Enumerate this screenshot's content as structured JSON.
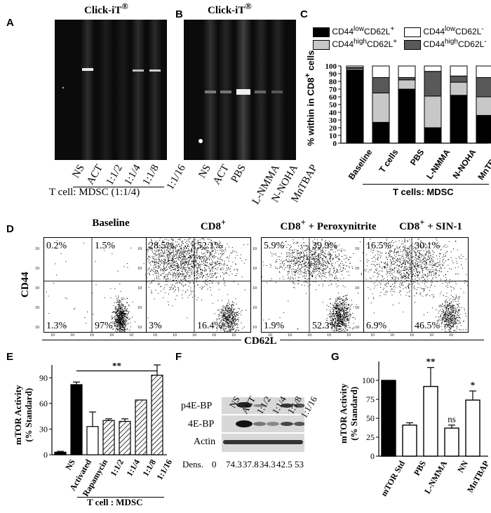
{
  "panel_letters": [
    "A",
    "B",
    "C",
    "D",
    "E",
    "F",
    "G"
  ],
  "panelA": {
    "title": "Click-iT",
    "title_sup": "®",
    "lanes": [
      "NS",
      "ACT",
      "1:1/2",
      "1:1/4",
      "1:1/8",
      "1:1/16"
    ],
    "group_label": "T cell: MDSC (1:1/4)"
  },
  "panelB": {
    "title": "Click-iT",
    "title_sup": "®",
    "lanes": [
      "NS",
      "ACT",
      "PBS",
      "L-NMMA",
      "N-NOHA",
      "MnTBAP"
    ]
  },
  "panelC": {
    "legend": {
      "a_main": "CD44",
      "a_sup1": "low",
      "a_mid": "CD62L",
      "a_sup2": "+",
      "b_main": "CD44",
      "b_sup1": "low",
      "b_mid": "CD62L",
      "b_sup2": "-",
      "c_main": "CD44",
      "c_sup1": "high",
      "c_mid": "CD62L",
      "c_sup2": "+",
      "d_main": "CD44",
      "d_sup1": "high",
      "d_mid": "CD62L",
      "d_sup2": "-"
    },
    "ylabel_pre": "% within in CD8",
    "ylabel_sup": "+",
    "ylabel_post": " cells",
    "yticks": [
      "0",
      "10",
      "20",
      "30",
      "40",
      "50",
      "60",
      "70",
      "80",
      "90",
      "100"
    ],
    "categories": [
      "Baseline",
      "T cells",
      "PBS",
      "L-NMMA",
      "N-NOHA",
      "MnTBAP"
    ],
    "group_label": "T cells: MDSC",
    "colors": {
      "lowPos": "#000000",
      "highPos": "#c8c8c8",
      "highNeg": "#595959",
      "lowNeg": "#ffffff"
    }
  },
  "panelD": {
    "plots": [
      {
        "title": "Baseline",
        "q": [
          "0.2%",
          "1.5%",
          "1.3%",
          "97%"
        ]
      },
      {
        "title": "CD8",
        "title_sup": "+",
        "q": [
          "28.5%",
          "52.1%",
          "3%",
          "16.4%"
        ]
      },
      {
        "title": "CD8",
        "title_sup": "+",
        "title_post": " + Peroxynitrite",
        "q": [
          "5.9%",
          "39.9%",
          "1.9%",
          "52.3%"
        ]
      },
      {
        "title": "CD8",
        "title_sup": "+",
        "title_post": " + SIN-1",
        "q": [
          "16.5%",
          "30.1%",
          "6.9%",
          "46.5%"
        ]
      }
    ],
    "ylabel": "CD44",
    "xlabel": "CD62L",
    "axis_ticks": [
      "10",
      "10",
      "10",
      "10",
      "10"
    ]
  },
  "panelE": {
    "ylabel_1": "mTOR Activity",
    "ylabel_2": "(% Standard)",
    "yticks": [
      "0",
      "30",
      "60",
      "90"
    ],
    "sig": "**",
    "group_label": "T cell : MDSC"
  },
  "panelF": {
    "lanes": [
      "NS",
      "ACT",
      "1:1/2",
      "1:1/4",
      "1:1/8",
      "1:1/16"
    ],
    "rows": [
      "p4E-BP",
      "4E-BP",
      "Actin"
    ],
    "dens_label": "Dens.",
    "dens_values": [
      "0",
      "74.3",
      "37.8",
      "34.3",
      "42.5",
      "53"
    ]
  },
  "panelG": {
    "ylabel_1": "mTOR Activity",
    "ylabel_2": "(% Standard)",
    "yticks": [
      "0",
      "25",
      "50",
      "75",
      "100"
    ],
    "annotations": [
      "**",
      "ns",
      "*"
    ]
  },
  "chart_data": [
    {
      "type": "bar",
      "stacked": true,
      "panel": "C",
      "categories": [
        "Baseline",
        "T cells",
        "PBS",
        "L-NMMA",
        "N-NOHA",
        "MnTBAP"
      ],
      "ylim": [
        0,
        100
      ],
      "series": [
        {
          "name": "CD44lowCD62L+",
          "values": [
            95,
            27,
            70,
            20,
            62,
            36
          ]
        },
        {
          "name": "CD44highCD62L+",
          "values": [
            2,
            38,
            12,
            41,
            17,
            24
          ]
        },
        {
          "name": "CD44highCD62L-",
          "values": [
            1,
            20,
            3,
            32,
            8,
            25
          ]
        },
        {
          "name": "CD44lowCD62L-",
          "values": [
            2,
            15,
            15,
            7,
            13,
            15
          ]
        }
      ],
      "error_tops": [
        [
          95,
          27,
          70,
          20,
          62,
          36
        ],
        [
          97,
          65,
          82,
          61,
          79,
          60
        ],
        [
          98,
          85,
          85,
          93,
          87,
          85
        ],
        [
          100,
          100,
          100,
          100,
          100,
          100
        ]
      ]
    },
    {
      "type": "bar",
      "panel": "E",
      "categories": [
        "NS",
        "Activated",
        "Rapamycin",
        "1:1/2",
        "1:1/4",
        "1:1/8",
        "1:1/16"
      ],
      "values": [
        3,
        82,
        33,
        40,
        39,
        64,
        93
      ],
      "errors": [
        1,
        3,
        17,
        2,
        3,
        0,
        12
      ],
      "ylim": [
        0,
        105
      ]
    },
    {
      "type": "bar",
      "panel": "G",
      "categories": [
        "mTOR Std",
        "PBS",
        "L-NMMA",
        "NN",
        "MnTBAP"
      ],
      "values": [
        100,
        41,
        92,
        37,
        74
      ],
      "errors": [
        0,
        3,
        25,
        4,
        12
      ],
      "ylim": [
        0,
        125
      ]
    }
  ]
}
